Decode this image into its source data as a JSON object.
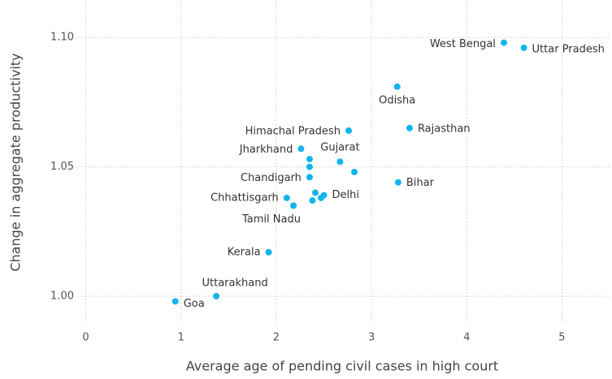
{
  "chart_data": {
    "type": "scatter",
    "x_label": "Average age of pending civil cases in high court",
    "y_label": "Change in aggregate productivity",
    "x": [
      4.39,
      4.6,
      3.27,
      3.4,
      2.76,
      2.26,
      2.35,
      2.35,
      2.67,
      2.82,
      2.35,
      3.28,
      2.41,
      2.5,
      2.47,
      2.11,
      2.38,
      2.18,
      1.92,
      1.37,
      0.94
    ],
    "values": [
      1.098,
      1.096,
      1.081,
      1.065,
      1.064,
      1.057,
      1.053,
      1.05,
      1.052,
      1.048,
      1.046,
      1.044,
      1.04,
      1.039,
      1.038,
      1.038,
      1.037,
      1.035,
      1.017,
      1.0,
      0.998
    ],
    "labels": [
      "West Bengal",
      "Uttar Pradesh",
      "Odisha",
      "Rajasthan",
      "Himachal Pradesh",
      "Jharkhand",
      null,
      null,
      "Gujarat",
      null,
      "Chandigarh",
      "Bihar",
      null,
      "Delhi",
      null,
      "Chhattisgarh",
      null,
      "Tamil Nadu",
      "Kerala",
      "Uttarakhand",
      "Goa"
    ],
    "color": "#13b5ea",
    "xlim": [
      -0.15,
      5.5
    ],
    "xticks": [
      0,
      1,
      2,
      3,
      4,
      5
    ],
    "ylim": [
      0.989,
      1.1145
    ],
    "yticks": [
      {
        "value": 1.0,
        "label": "1.00"
      },
      {
        "value": 1.05,
        "label": "1.05"
      },
      {
        "value": 1.1,
        "label": "1.10"
      }
    ],
    "grid": true
  }
}
